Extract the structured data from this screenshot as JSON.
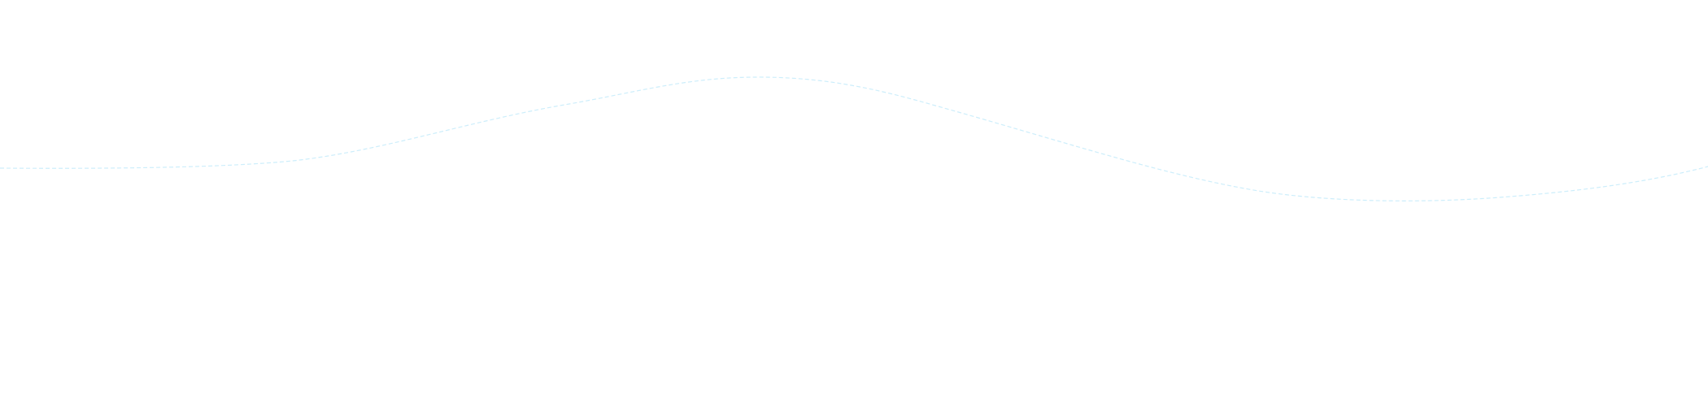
{
  "decoration": {
    "wave_color": "#cdeefb",
    "background_color": "#ffffff",
    "line_style": "dashed"
  }
}
